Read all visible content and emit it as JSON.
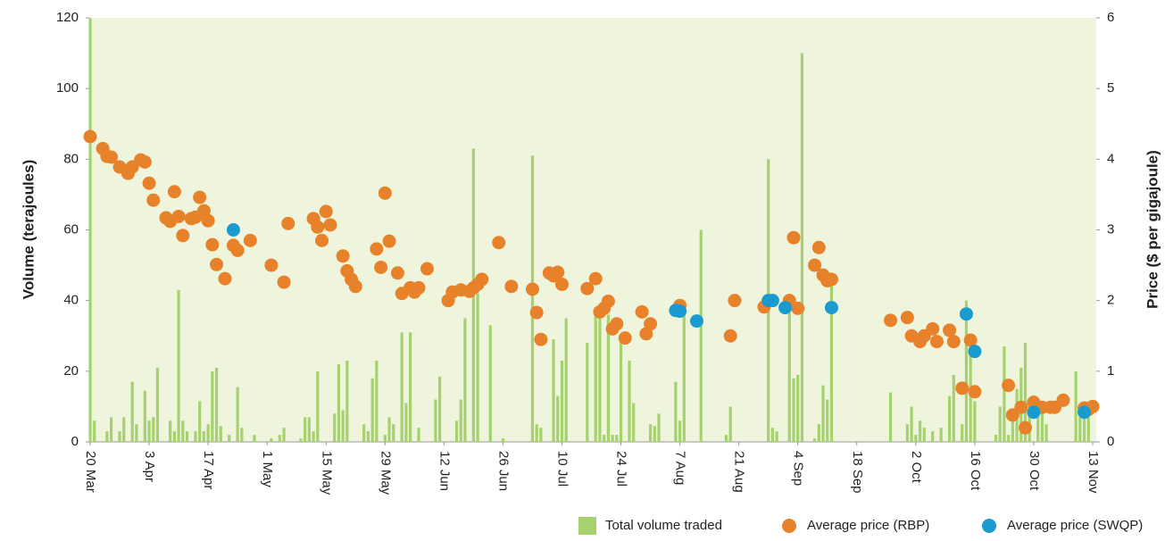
{
  "chart_data": {
    "type": "bar",
    "ylabel": "Volume (terajoules)",
    "y2label": "Price ($ per gigajoule)",
    "ylim": [
      0,
      120
    ],
    "yticks": [
      0,
      20,
      40,
      60,
      80,
      100,
      120
    ],
    "y2lim": [
      0,
      6
    ],
    "y2ticks": [
      0,
      1,
      2,
      3,
      4,
      5,
      6
    ],
    "categories": [
      "20 Mar",
      null,
      null,
      null,
      null,
      null,
      null,
      null,
      null,
      null,
      null,
      null,
      null,
      null,
      "3 Apr",
      null,
      null,
      null,
      null,
      null,
      null,
      null,
      null,
      null,
      null,
      null,
      null,
      null,
      "17 Apr",
      null,
      null,
      null,
      null,
      null,
      null,
      null,
      null,
      null,
      null,
      null,
      null,
      null,
      "1 May",
      null,
      null,
      null,
      null,
      null,
      null,
      null,
      null,
      null,
      null,
      null,
      null,
      null,
      "15 May",
      null,
      null,
      null,
      null,
      null,
      null,
      null,
      null,
      null,
      null,
      null,
      null,
      null,
      "29 May",
      null,
      null,
      null,
      null,
      null,
      null,
      null,
      null,
      null,
      null,
      null,
      null,
      null,
      "12 Jun",
      null,
      null,
      null,
      null,
      null,
      null,
      null,
      null,
      null,
      null,
      null,
      null,
      null,
      "26 Jun",
      null,
      null,
      null,
      null,
      null,
      null,
      null,
      null,
      null,
      null,
      null,
      null,
      null,
      "10 Jul",
      null,
      null,
      null,
      null,
      null,
      null,
      null,
      null,
      null,
      null,
      null,
      null,
      null,
      "24 Jul",
      null,
      null,
      null,
      null,
      null,
      null,
      null,
      null,
      null,
      null,
      null,
      null,
      null,
      "7 Aug",
      null,
      null,
      null,
      null,
      null,
      null,
      null,
      null,
      null,
      null,
      null,
      null,
      null,
      "21 Aug",
      null,
      null,
      null,
      null,
      null,
      null,
      null,
      null,
      null,
      null,
      null,
      null,
      null,
      "4 Sep",
      null,
      null,
      null,
      null,
      null,
      null,
      null,
      null,
      null,
      null,
      null,
      null,
      null,
      "18 Sep",
      null,
      null,
      null,
      null,
      null,
      null,
      null,
      null,
      null,
      null,
      null,
      null,
      null,
      "2 Oct",
      null,
      null,
      null,
      null,
      null,
      null,
      null,
      null,
      null,
      null,
      null,
      null,
      null,
      "16 Oct",
      null,
      null,
      null,
      null,
      null,
      null,
      null,
      null,
      null,
      null,
      null,
      null,
      null,
      "30 Oct",
      null,
      null,
      null,
      null,
      null,
      null,
      null,
      null,
      null,
      null,
      null,
      null,
      null,
      "13 Nov"
    ],
    "series": [
      {
        "name": "Total volume traded",
        "type": "bar",
        "color": "#a6d16f",
        "values": [
          120,
          6,
          null,
          null,
          3,
          7,
          null,
          3,
          7,
          null,
          17,
          5,
          null,
          14.5,
          6,
          7,
          21,
          null,
          null,
          6,
          3,
          43,
          6,
          3,
          null,
          3,
          11.5,
          3,
          5,
          20,
          21,
          4.5,
          null,
          2,
          null,
          15.5,
          4,
          null,
          null,
          2,
          null,
          null,
          null,
          1,
          null,
          2,
          4,
          null,
          null,
          null,
          1,
          7,
          7,
          3,
          20,
          null,
          null,
          null,
          8,
          22,
          9,
          23,
          null,
          null,
          null,
          5,
          3,
          18,
          23,
          null,
          2,
          7,
          5,
          null,
          31,
          11,
          31,
          null,
          4,
          null,
          null,
          null,
          12,
          18.5,
          null,
          null,
          null,
          6,
          12,
          35,
          null,
          83,
          42,
          null,
          null,
          33,
          null,
          null,
          1,
          null,
          null,
          null,
          null,
          null,
          null,
          81,
          5,
          4,
          null,
          null,
          29,
          13,
          23,
          35,
          null,
          null,
          null,
          null,
          28,
          null,
          38,
          36,
          2,
          36,
          2,
          2,
          30,
          null,
          23,
          11,
          null,
          null,
          null,
          5,
          4.5,
          8,
          null,
          null,
          null,
          17,
          6,
          37,
          null,
          null,
          null,
          60,
          null,
          null,
          null,
          null,
          null,
          2,
          10,
          null,
          null,
          null,
          null,
          null,
          null,
          null,
          null,
          80,
          4,
          3,
          null,
          null,
          40,
          18,
          19,
          110,
          null,
          null,
          1,
          5,
          16,
          12,
          45,
          null,
          null,
          null,
          null,
          null,
          null,
          null,
          null,
          null,
          null,
          null,
          null,
          null,
          14,
          null,
          null,
          null,
          5,
          10,
          2,
          6,
          4,
          null,
          3,
          null,
          4,
          null,
          13,
          19,
          null,
          5,
          40,
          28,
          11.5,
          null,
          null,
          null,
          null,
          2,
          10,
          27,
          2,
          9,
          15,
          21,
          28,
          10,
          null,
          10,
          10,
          5,
          null,
          null,
          null,
          null,
          null,
          null,
          20,
          7,
          7,
          11,
          null
        ]
      },
      {
        "name": "Average price (RBP)",
        "type": "scatter",
        "axis": "y2",
        "color": "#e8822a",
        "values": [
          4.32,
          null,
          null,
          4.15,
          4.04,
          4.03,
          null,
          3.89,
          null,
          3.8,
          3.89,
          null,
          3.99,
          3.96,
          3.66,
          3.42,
          null,
          null,
          3.17,
          3.12,
          3.54,
          3.19,
          2.92,
          null,
          3.16,
          3.18,
          3.46,
          3.27,
          3.13,
          2.79,
          2.51,
          null,
          2.31,
          null,
          2.78,
          2.71,
          null,
          null,
          2.85,
          null,
          null,
          null,
          null,
          2.5,
          null,
          null,
          2.26,
          3.09,
          null,
          null,
          null,
          null,
          null,
          3.16,
          3.04,
          2.85,
          3.26,
          3.07,
          null,
          null,
          2.63,
          2.42,
          2.3,
          2.2,
          null,
          null,
          null,
          null,
          2.73,
          2.47,
          3.52,
          2.84,
          null,
          2.39,
          2.1,
          null,
          2.18,
          2.12,
          2.18,
          null,
          2.45,
          null,
          null,
          null,
          null,
          2.0,
          2.12,
          null,
          2.15,
          null,
          2.13,
          2.18,
          2.23,
          2.3,
          null,
          null,
          null,
          2.82,
          null,
          null,
          2.2,
          null,
          null,
          null,
          null,
          2.16,
          1.83,
          1.45,
          null,
          2.39,
          2.35,
          2.4,
          2.23,
          null,
          null,
          null,
          null,
          null,
          2.17,
          null,
          2.31,
          1.84,
          1.89,
          1.99,
          1.6,
          1.67,
          null,
          1.47,
          null,
          null,
          null,
          1.84,
          1.53,
          1.67,
          null,
          null,
          null,
          null,
          null,
          null,
          1.93,
          null,
          null,
          null,
          null,
          null,
          null,
          null,
          null,
          null,
          null,
          null,
          1.5,
          2.0,
          null,
          null,
          null,
          null,
          null,
          null,
          1.91,
          null,
          null,
          null,
          null,
          null,
          2.0,
          2.89,
          1.89,
          null,
          null,
          null,
          2.5,
          2.75,
          2.36,
          2.28,
          2.3,
          null,
          null,
          null,
          null,
          null,
          null,
          null,
          null,
          null,
          null,
          null,
          null,
          null,
          1.72,
          null,
          null,
          null,
          1.76,
          1.5,
          null,
          1.42,
          1.5,
          null,
          1.6,
          1.42,
          null,
          null,
          1.58,
          1.42,
          null,
          0.76,
          null,
          1.44,
          0.71,
          null,
          null,
          null,
          null,
          null,
          null,
          null,
          0.8,
          0.38,
          null,
          0.49,
          0.2,
          null,
          0.56,
          null,
          0.49,
          null,
          0.49,
          0.49,
          null,
          0.59,
          null,
          null,
          null,
          null,
          0.48,
          0.46,
          0.5
        ]
      },
      {
        "name": "Average price (SWQP)",
        "type": "scatter",
        "axis": "y2",
        "color": "#1a9bd0",
        "values": [
          null,
          null,
          null,
          null,
          null,
          null,
          null,
          null,
          null,
          null,
          null,
          null,
          null,
          null,
          null,
          null,
          null,
          null,
          null,
          null,
          null,
          null,
          null,
          null,
          null,
          null,
          null,
          null,
          null,
          null,
          null,
          null,
          null,
          null,
          3.0,
          null,
          null,
          null,
          null,
          null,
          null,
          null,
          null,
          null,
          null,
          null,
          null,
          null,
          null,
          null,
          null,
          null,
          null,
          null,
          null,
          null,
          null,
          null,
          null,
          null,
          null,
          null,
          null,
          null,
          null,
          null,
          null,
          null,
          null,
          null,
          null,
          null,
          null,
          null,
          null,
          null,
          null,
          null,
          null,
          null,
          null,
          null,
          null,
          null,
          null,
          null,
          null,
          null,
          null,
          null,
          null,
          null,
          null,
          null,
          null,
          null,
          null,
          null,
          null,
          null,
          null,
          null,
          null,
          null,
          null,
          null,
          null,
          null,
          null,
          null,
          null,
          null,
          null,
          null,
          null,
          null,
          null,
          null,
          null,
          null,
          null,
          null,
          null,
          null,
          null,
          null,
          null,
          null,
          null,
          null,
          null,
          null,
          null,
          null,
          null,
          null,
          null,
          null,
          null,
          1.86,
          1.85,
          null,
          null,
          null,
          1.71,
          null,
          null,
          null,
          null,
          null,
          null,
          null,
          null,
          null,
          null,
          null,
          null,
          null,
          null,
          null,
          null,
          2.0,
          2.0,
          null,
          null,
          1.9,
          null,
          null,
          null,
          null,
          null,
          null,
          null,
          null,
          null,
          null,
          1.9,
          null,
          null,
          null,
          null,
          null,
          null,
          null,
          null,
          null,
          null,
          null,
          null,
          null,
          null,
          null,
          null,
          null,
          null,
          null,
          null,
          null,
          null,
          null,
          null,
          null,
          null,
          null,
          null,
          null,
          null,
          null,
          1.81,
          null,
          1.28,
          null,
          null,
          null,
          null,
          null,
          null,
          null,
          null,
          null,
          null,
          null,
          null,
          null,
          0.42,
          null,
          null,
          null,
          null,
          null,
          null,
          null,
          null,
          null,
          null,
          null,
          0.42,
          null,
          null
        ]
      }
    ]
  }
}
